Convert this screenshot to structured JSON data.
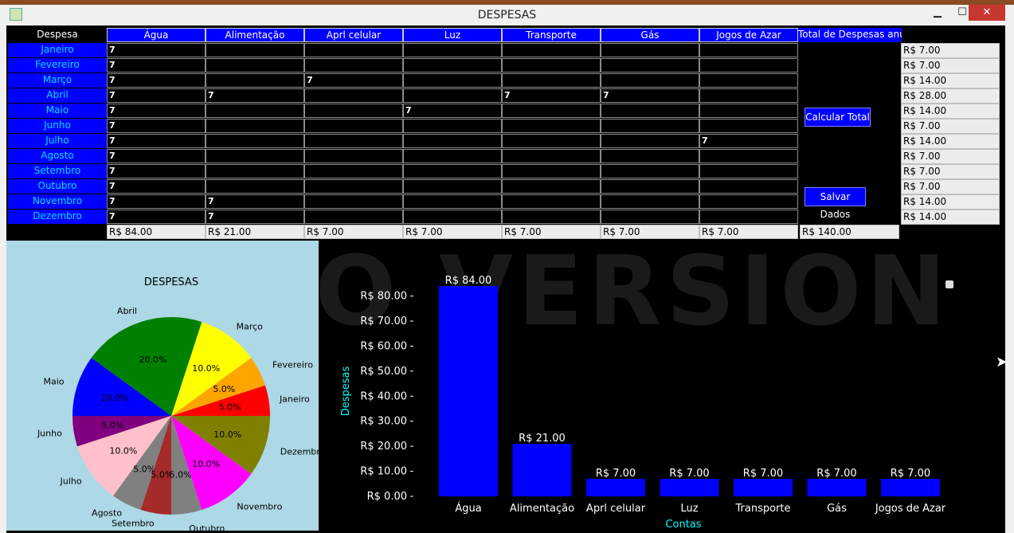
{
  "window": {
    "title": "DESPESAS"
  },
  "table": {
    "first_header": "Despesa",
    "columns": [
      "Água",
      "Alimentação",
      "Aprl celular",
      "Luz",
      "Transporte",
      "Gás",
      "Jogos de Azar"
    ],
    "total_header": "Total de Despesas anual",
    "months": [
      "Janeiro",
      "Fevereiro",
      "Março",
      "Abril",
      "Maio",
      "Junho",
      "Julho",
      "Agosto",
      "Setembro",
      "Outubro",
      "Novembro",
      "Dezembro"
    ],
    "values": [
      [
        "7",
        "",
        "",
        "",
        "",
        "",
        ""
      ],
      [
        "7",
        "",
        "",
        "",
        "",
        "",
        ""
      ],
      [
        "7",
        "",
        "7",
        "",
        "",
        "",
        ""
      ],
      [
        "7",
        "7",
        "",
        "",
        "7",
        "7",
        ""
      ],
      [
        "7",
        "",
        "",
        "7",
        "",
        "",
        ""
      ],
      [
        "7",
        "",
        "",
        "",
        "",
        "",
        ""
      ],
      [
        "7",
        "",
        "",
        "",
        "",
        "",
        "7"
      ],
      [
        "7",
        "",
        "",
        "",
        "",
        "",
        ""
      ],
      [
        "7",
        "",
        "",
        "",
        "",
        "",
        ""
      ],
      [
        "7",
        "",
        "",
        "",
        "",
        "",
        ""
      ],
      [
        "7",
        "7",
        "",
        "",
        "",
        "",
        ""
      ],
      [
        "7",
        "7",
        "",
        "",
        "",
        "",
        ""
      ]
    ],
    "row_totals": [
      "R$ 7.00",
      "R$ 7.00",
      "R$ 14.00",
      "R$ 28.00",
      "R$ 14.00",
      "R$ 7.00",
      "R$ 14.00",
      "R$ 7.00",
      "R$ 7.00",
      "R$ 7.00",
      "R$ 14.00",
      "R$ 14.00"
    ],
    "column_totals": [
      "R$ 84.00",
      "R$ 21.00",
      "R$ 7.00",
      "R$ 7.00",
      "R$ 7.00",
      "R$ 7.00",
      "R$ 7.00"
    ],
    "grand_total": "R$ 140.00"
  },
  "actions": {
    "calc_label": "Calcular Total",
    "save_label": "Salvar Dados"
  },
  "watermark": "DEMO VERSION",
  "chart_data": [
    {
      "type": "pie",
      "title": "DESPESAS",
      "labels": [
        "Janeiro",
        "Fevereiro",
        "Março",
        "Abril",
        "Maio",
        "Junho",
        "Julho",
        "Agosto",
        "Setembro",
        "Outubro",
        "Novembro",
        "Dezembro"
      ],
      "values": [
        7,
        7,
        14,
        28,
        14,
        7,
        14,
        7,
        7,
        7,
        14,
        14
      ],
      "percent_labels": [
        "5.0%",
        "5.0%",
        "10.0%",
        "20.0%",
        "10.0%",
        "5.0%",
        "10.0%",
        "5.0%",
        "5.0%",
        "5.0%",
        "10.0%",
        "10.0%"
      ],
      "colors": [
        "#ff0000",
        "#ffa500",
        "#ffff00",
        "#008000",
        "#0000ff",
        "#800080",
        "#ffc0cb",
        "#808080",
        "#a52a2a",
        "#808080",
        "#ff00ff",
        "#808000"
      ],
      "background": "#add8e6"
    },
    {
      "type": "bar",
      "categories": [
        "Água",
        "Alimentação",
        "Aprl celular",
        "Luz",
        "Transporte",
        "Gás",
        "Jogos de Azar"
      ],
      "values": [
        84,
        21,
        7,
        7,
        7,
        7,
        7
      ],
      "value_labels": [
        "R$ 84.00",
        "R$ 21.00",
        "R$ 7.00",
        "R$ 7.00",
        "R$ 7.00",
        "R$ 7.00",
        "R$ 7.00"
      ],
      "yticks": [
        0,
        10,
        20,
        30,
        40,
        50,
        60,
        70,
        80
      ],
      "ytick_labels": [
        "R$ 0.00",
        "R$ 10.00",
        "R$ 20.00",
        "R$ 30.00",
        "R$ 40.00",
        "R$ 50.00",
        "R$ 60.00",
        "R$ 70.00",
        "R$ 80.00"
      ],
      "ylim": [
        0,
        84
      ],
      "xlabel": "Contas",
      "ylabel": "Despesas",
      "bar_color": "#0000ff",
      "label_color": "#00ffff"
    }
  ]
}
